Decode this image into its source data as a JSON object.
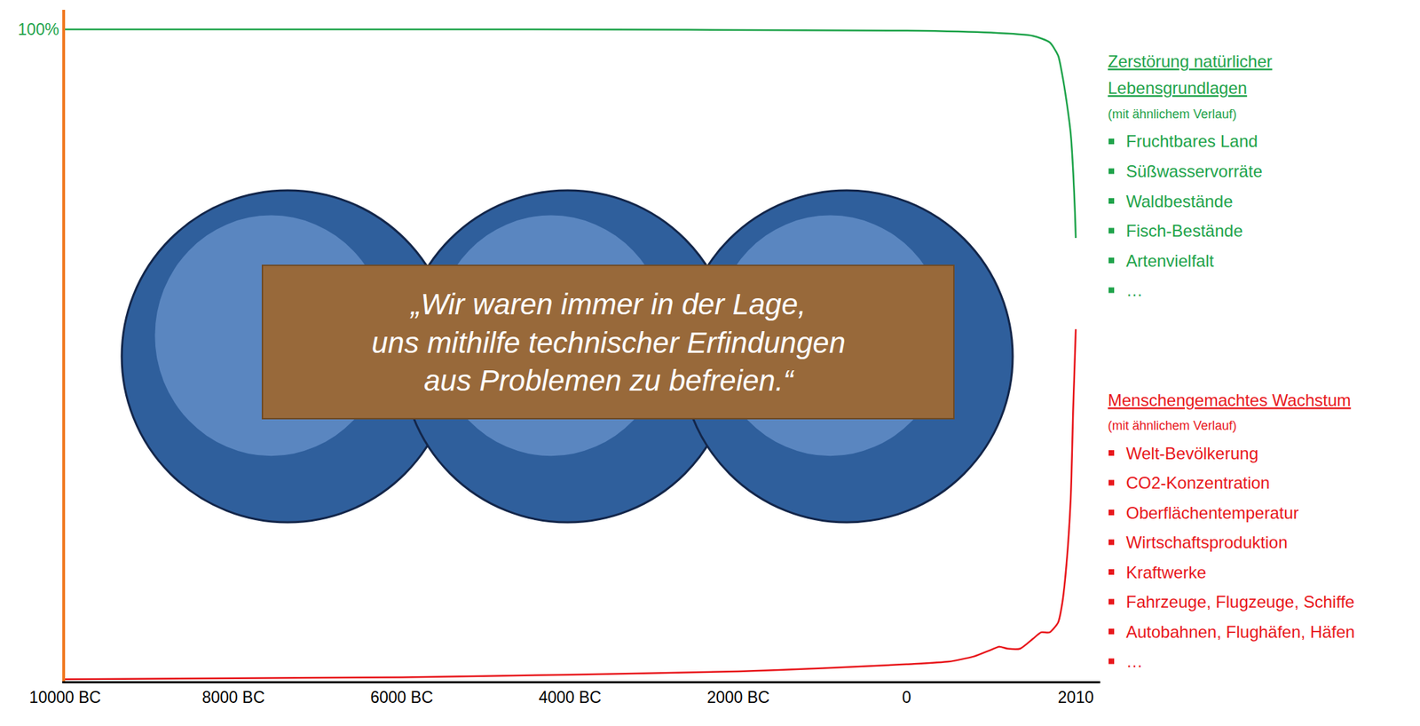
{
  "chart_data": {
    "type": "line",
    "quote": [
      "„Wir waren immer in der Lage,",
      "uns mithilfe technischer Erfindungen",
      "aus Problemen zu befreien.“"
    ],
    "series": [
      {
        "name": "Zerstörung natürlicher Lebensgrundlagen",
        "note": "(mit ähnlichem Verlauf)",
        "items": [
          "Fruchtbares Land",
          "Süßwasservorräte",
          "Waldbestände",
          "Fisch-Bestände",
          "Artenvielfalt",
          "…"
        ],
        "color": "#1ea34a",
        "x": [
          -10000,
          -5000,
          0,
          1000,
          1500,
          1700,
          1800,
          1850,
          1900,
          1950,
          1980,
          2000,
          2010
        ],
        "values": [
          100,
          100,
          99.8,
          99.5,
          99,
          98,
          96,
          93,
          89,
          84,
          78,
          72,
          68
        ]
      },
      {
        "name": "Menschengemachtes Wachstum",
        "note": "(mit ähnlichem Verlauf)",
        "items": [
          "Welt-Bevölkerung",
          "CO2-Konzentration",
          "Oberflächentemperatur",
          "Wirtschaftsproduktion",
          "Kraftwerke",
          "Fahrzeuge, Flugzeuge, Schiffe",
          "Autobahnen, Flughäfen, Häfen",
          "…"
        ],
        "color": "#e8161b",
        "x": [
          -10000,
          -6000,
          -4000,
          -2000,
          -1000,
          0,
          500,
          800,
          1000,
          1100,
          1200,
          1350,
          1500,
          1600,
          1700,
          1800,
          1850,
          1900,
          1950,
          1980,
          2010
        ],
        "values": [
          0.3,
          0.6,
          1,
          1.5,
          2,
          2.6,
          3,
          3.8,
          4.8,
          5.3,
          5,
          5,
          6.5,
          7.5,
          7.5,
          9,
          12,
          18,
          28,
          42,
          54
        ]
      }
    ],
    "xlim": [
      -10000,
      2300
    ],
    "xticks": [
      {
        "value": -10000,
        "label": "10000 BC"
      },
      {
        "value": -8000,
        "label": "8000 BC"
      },
      {
        "value": -6000,
        "label": "6000 BC"
      },
      {
        "value": -4000,
        "label": "4000 BC"
      },
      {
        "value": -2000,
        "label": "2000 BC"
      },
      0,
      2010
    ],
    "ylim": [
      0,
      103
    ],
    "yticks": [
      {
        "value": 100,
        "label": "100%"
      }
    ],
    "grid": false
  }
}
